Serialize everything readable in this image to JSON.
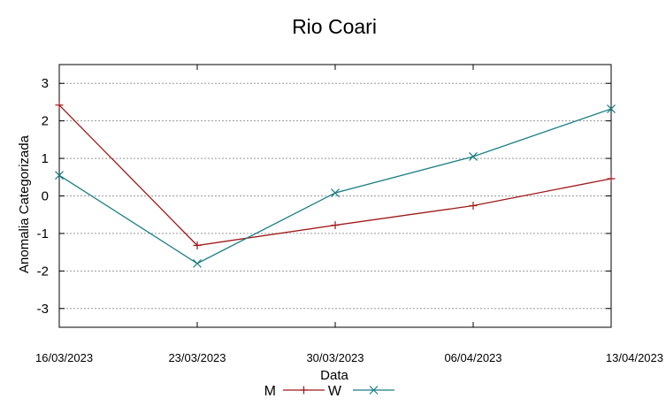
{
  "chart_data": {
    "type": "line",
    "title": "Rio Coari",
    "xlabel": "Data",
    "ylabel": "Anomalia Categorizada",
    "categories": [
      "16/03/2023",
      "23/03/2023",
      "30/03/2023",
      "06/04/2023",
      "13/04/2023"
    ],
    "y_ticks": [
      "3",
      "2",
      "1",
      "0",
      "-1",
      "-2",
      "-3"
    ],
    "ylim": [
      -3.5,
      3.5
    ],
    "grid": true,
    "legend_placement": "bottom",
    "series": [
      {
        "name": "M",
        "color": "#a01818",
        "marker": "plus",
        "values": [
          2.42,
          -1.32,
          -0.78,
          -0.26,
          0.46
        ]
      },
      {
        "name": "W",
        "color": "#1a7e84",
        "marker": "cross",
        "values": [
          0.55,
          -1.8,
          0.08,
          1.05,
          2.32
        ]
      }
    ]
  }
}
